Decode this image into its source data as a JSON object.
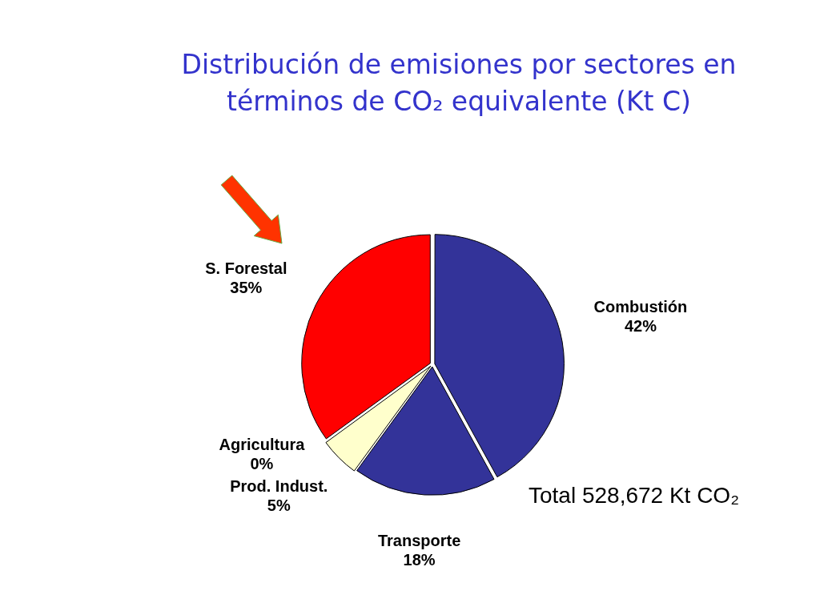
{
  "chart_data": {
    "type": "pie",
    "title": "Distribución de emisiones por sectores en términos de CO₂ equivalente (Kt C)",
    "categories": [
      "Combustión",
      "Transporte",
      "Prod. Indust.",
      "Agricultura",
      "S. Forestal"
    ],
    "values": [
      42,
      18,
      5,
      0,
      35
    ],
    "colors": [
      "#333399",
      "#333399",
      "#ffffcc",
      "#a9bcbc",
      "#ff0000"
    ],
    "value_labels": [
      "42%",
      "18%",
      "5%",
      "0%",
      "35%"
    ],
    "annotations": [
      "Total 528,672 Kt CO₂"
    ],
    "legend": false
  }
}
